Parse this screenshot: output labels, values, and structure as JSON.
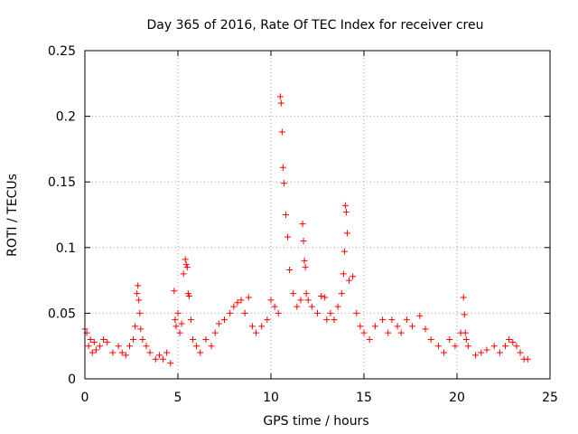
{
  "chart_data": {
    "type": "scatter",
    "title": "Day 365 of 2016, Rate Of TEC Index for receiver creu",
    "xlabel": "GPS time / hours",
    "ylabel": "ROTI / TECUs",
    "xlim": [
      0,
      25
    ],
    "ylim": [
      0,
      0.25
    ],
    "xticks": [
      0,
      5,
      10,
      15,
      20,
      25
    ],
    "yticks": [
      0,
      0.05,
      0.1,
      0.15,
      0.2,
      0.25
    ],
    "xtick_labels": [
      "0",
      "5",
      "10",
      "15",
      "20",
      "25"
    ],
    "ytick_labels": [
      "0",
      "0.05",
      "0.1",
      "0.15",
      "0.2",
      "0.25"
    ],
    "grid": true,
    "marker": "+",
    "color": "#ff0000",
    "series": [
      {
        "x": [
          0.0,
          0.1,
          0.2,
          0.3,
          0.4,
          0.5,
          0.6,
          0.8,
          1.0,
          1.2,
          1.5,
          1.8,
          2.0,
          2.2,
          2.4,
          2.6,
          2.7,
          2.8,
          2.85,
          2.9,
          2.95,
          3.0,
          3.1,
          3.3,
          3.5,
          3.8,
          4.0,
          4.2,
          4.4,
          4.6,
          4.8,
          4.85,
          4.9,
          5.0,
          5.1,
          5.2,
          5.3,
          5.4,
          5.45,
          5.5,
          5.55,
          5.6,
          5.7,
          5.8,
          6.0,
          6.2,
          6.5,
          6.8,
          7.0,
          7.2,
          7.5,
          7.8,
          8.0,
          8.2,
          8.4,
          8.6,
          8.8,
          9.0,
          9.2,
          9.5,
          9.8,
          10.0,
          10.2,
          10.4,
          10.5,
          10.55,
          10.6,
          10.65,
          10.7,
          10.8,
          10.9,
          11.0,
          11.2,
          11.4,
          11.6,
          11.7,
          11.75,
          11.8,
          11.85,
          11.9,
          12.0,
          12.2,
          12.5,
          12.7,
          12.9,
          13.0,
          13.2,
          13.4,
          13.6,
          13.8,
          13.9,
          13.95,
          14.0,
          14.05,
          14.1,
          14.2,
          14.4,
          14.6,
          14.8,
          15.0,
          15.3,
          15.6,
          16.0,
          16.3,
          16.5,
          16.8,
          17.0,
          17.3,
          17.6,
          18.0,
          18.3,
          18.6,
          19.0,
          19.3,
          19.6,
          19.9,
          20.2,
          20.35,
          20.4,
          20.45,
          20.5,
          20.6,
          21.0,
          21.3,
          21.6,
          22.0,
          22.3,
          22.6,
          22.8,
          23.0,
          23.2,
          23.4,
          23.6,
          23.8
        ],
        "y": [
          0.038,
          0.035,
          0.025,
          0.03,
          0.02,
          0.028,
          0.022,
          0.025,
          0.03,
          0.028,
          0.02,
          0.025,
          0.02,
          0.018,
          0.025,
          0.03,
          0.04,
          0.065,
          0.071,
          0.06,
          0.05,
          0.038,
          0.03,
          0.025,
          0.02,
          0.015,
          0.018,
          0.015,
          0.02,
          0.012,
          0.067,
          0.045,
          0.04,
          0.05,
          0.035,
          0.042,
          0.08,
          0.091,
          0.087,
          0.085,
          0.065,
          0.063,
          0.045,
          0.03,
          0.025,
          0.02,
          0.03,
          0.025,
          0.035,
          0.042,
          0.045,
          0.05,
          0.055,
          0.058,
          0.06,
          0.05,
          0.062,
          0.04,
          0.035,
          0.04,
          0.045,
          0.06,
          0.055,
          0.05,
          0.215,
          0.21,
          0.188,
          0.161,
          0.149,
          0.125,
          0.108,
          0.083,
          0.065,
          0.055,
          0.06,
          0.118,
          0.105,
          0.09,
          0.085,
          0.065,
          0.06,
          0.055,
          0.05,
          0.063,
          0.062,
          0.045,
          0.05,
          0.045,
          0.055,
          0.065,
          0.08,
          0.097,
          0.132,
          0.127,
          0.111,
          0.075,
          0.078,
          0.05,
          0.04,
          0.035,
          0.03,
          0.04,
          0.045,
          0.035,
          0.045,
          0.04,
          0.035,
          0.045,
          0.04,
          0.048,
          0.038,
          0.03,
          0.025,
          0.02,
          0.03,
          0.025,
          0.035,
          0.062,
          0.049,
          0.035,
          0.03,
          0.025,
          0.018,
          0.02,
          0.022,
          0.025,
          0.02,
          0.025,
          0.03,
          0.028,
          0.025,
          0.02,
          0.015,
          0.015
        ]
      }
    ]
  }
}
